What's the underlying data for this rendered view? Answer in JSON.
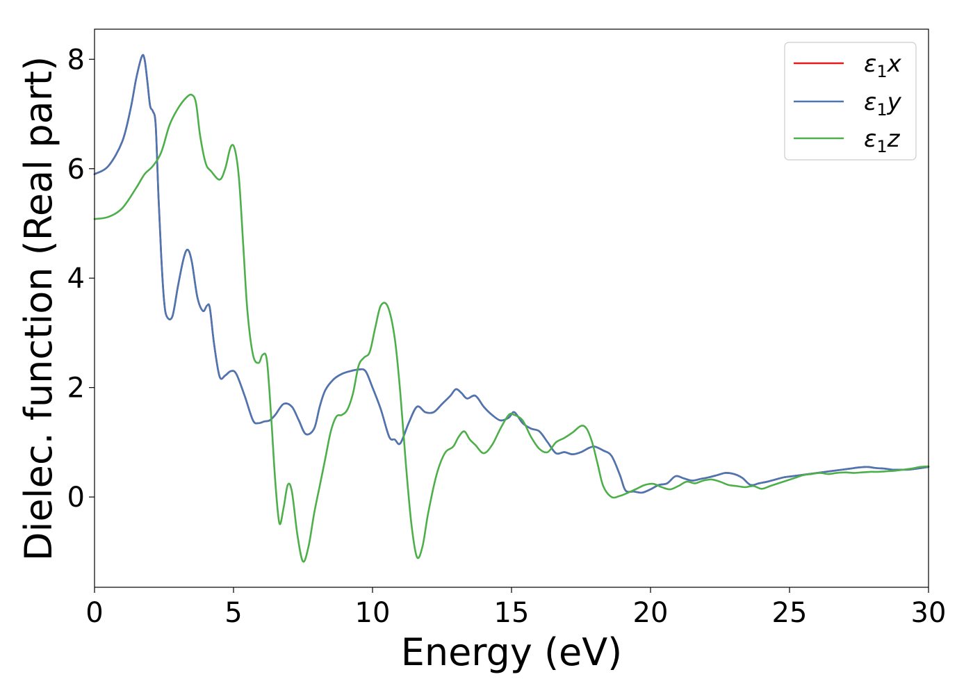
{
  "chart_data": {
    "type": "line",
    "title": "",
    "xlabel": "Energy (eV)",
    "ylabel": "Dielec. function (Real part)",
    "xlim": [
      0,
      30
    ],
    "ylim": [
      -1.65,
      8.55
    ],
    "xticks": [
      0,
      5,
      10,
      15,
      20,
      25,
      30
    ],
    "xtick_labels": [
      "0",
      "5",
      "10",
      "15",
      "20",
      "25",
      "30"
    ],
    "yticks": [
      0,
      2,
      4,
      6,
      8
    ],
    "ytick_labels": [
      "0",
      "2",
      "4",
      "6",
      "8"
    ],
    "grid": false,
    "legend_position": "top-right",
    "series": [
      {
        "name": "ε₁x",
        "legend_base": "ε",
        "legend_sub": "1",
        "legend_suffix": "x",
        "color": "#e41a1c",
        "x": [
          0,
          0.5,
          1.0,
          1.3,
          1.5,
          1.7,
          1.8,
          1.9,
          2.0,
          2.1,
          2.2,
          2.3,
          2.4,
          2.5,
          2.6,
          2.8,
          3.0,
          3.2,
          3.35,
          3.5,
          3.7,
          3.9,
          4.05,
          4.15,
          4.3,
          4.5,
          4.7,
          4.9,
          5.1,
          5.4,
          5.7,
          5.9,
          6.1,
          6.3,
          6.5,
          6.8,
          7.1,
          7.35,
          7.6,
          7.9,
          8.1,
          8.3,
          8.6,
          8.9,
          9.2,
          9.5,
          9.75,
          10.0,
          10.3,
          10.6,
          10.8,
          11.0,
          11.3,
          11.6,
          11.9,
          12.2,
          12.5,
          12.8,
          13.0,
          13.2,
          13.4,
          13.7,
          14.0,
          14.3,
          14.6,
          14.9,
          15.1,
          15.4,
          15.7,
          16.0,
          16.3,
          16.6,
          16.9,
          17.2,
          17.5,
          17.8,
          18.0,
          18.3,
          18.6,
          18.9,
          19.1,
          19.4,
          19.7,
          20.0,
          20.3,
          20.6,
          20.9,
          21.2,
          21.5,
          21.8,
          22.1,
          22.4,
          22.7,
          23.0,
          23.3,
          23.6,
          23.9,
          24.2,
          24.5,
          24.8,
          25.1,
          25.4,
          25.7,
          26.0,
          26.3,
          26.6,
          26.9,
          27.2,
          27.5,
          27.8,
          28.1,
          28.4,
          28.7,
          29.0,
          29.3,
          29.6,
          30.0
        ],
        "y": [
          5.9,
          6.05,
          6.5,
          7.1,
          7.65,
          8.05,
          8.0,
          7.6,
          7.15,
          7.05,
          6.8,
          5.5,
          4.4,
          3.6,
          3.3,
          3.3,
          3.85,
          4.35,
          4.52,
          4.3,
          3.65,
          3.4,
          3.5,
          3.45,
          2.8,
          2.2,
          2.22,
          2.3,
          2.25,
          1.85,
          1.4,
          1.35,
          1.38,
          1.4,
          1.5,
          1.7,
          1.65,
          1.4,
          1.15,
          1.25,
          1.65,
          1.95,
          2.15,
          2.25,
          2.3,
          2.33,
          2.3,
          2.0,
          1.6,
          1.1,
          1.05,
          0.98,
          1.35,
          1.65,
          1.55,
          1.55,
          1.7,
          1.85,
          1.97,
          1.9,
          1.8,
          1.85,
          1.65,
          1.5,
          1.4,
          1.45,
          1.55,
          1.35,
          1.25,
          1.2,
          1.0,
          0.8,
          0.82,
          0.78,
          0.82,
          0.9,
          0.92,
          0.85,
          0.75,
          0.4,
          0.12,
          0.1,
          0.08,
          0.14,
          0.22,
          0.25,
          0.38,
          0.34,
          0.3,
          0.33,
          0.36,
          0.4,
          0.44,
          0.42,
          0.35,
          0.22,
          0.25,
          0.28,
          0.32,
          0.36,
          0.38,
          0.4,
          0.42,
          0.44,
          0.46,
          0.48,
          0.5,
          0.52,
          0.54,
          0.55,
          0.53,
          0.52,
          0.5,
          0.5,
          0.5,
          0.52,
          0.55
        ]
      },
      {
        "name": "ε₁y",
        "legend_base": "ε",
        "legend_sub": "1",
        "legend_suffix": "y",
        "color": "#4a77b4",
        "x": [
          0,
          0.5,
          1.0,
          1.3,
          1.5,
          1.7,
          1.8,
          1.9,
          2.0,
          2.1,
          2.2,
          2.3,
          2.4,
          2.5,
          2.6,
          2.8,
          3.0,
          3.2,
          3.35,
          3.5,
          3.7,
          3.9,
          4.05,
          4.15,
          4.3,
          4.5,
          4.7,
          4.9,
          5.1,
          5.4,
          5.7,
          5.9,
          6.1,
          6.3,
          6.5,
          6.8,
          7.1,
          7.35,
          7.6,
          7.9,
          8.1,
          8.3,
          8.6,
          8.9,
          9.2,
          9.5,
          9.75,
          10.0,
          10.3,
          10.6,
          10.8,
          11.0,
          11.3,
          11.6,
          11.9,
          12.2,
          12.5,
          12.8,
          13.0,
          13.2,
          13.4,
          13.7,
          14.0,
          14.3,
          14.6,
          14.9,
          15.1,
          15.4,
          15.7,
          16.0,
          16.3,
          16.6,
          16.9,
          17.2,
          17.5,
          17.8,
          18.0,
          18.3,
          18.6,
          18.9,
          19.1,
          19.4,
          19.7,
          20.0,
          20.3,
          20.6,
          20.9,
          21.2,
          21.5,
          21.8,
          22.1,
          22.4,
          22.7,
          23.0,
          23.3,
          23.6,
          23.9,
          24.2,
          24.5,
          24.8,
          25.1,
          25.4,
          25.7,
          26.0,
          26.3,
          26.6,
          26.9,
          27.2,
          27.5,
          27.8,
          28.1,
          28.4,
          28.7,
          29.0,
          29.3,
          29.6,
          30.0
        ],
        "y": [
          5.9,
          6.05,
          6.5,
          7.1,
          7.65,
          8.05,
          8.0,
          7.6,
          7.15,
          7.05,
          6.8,
          5.5,
          4.4,
          3.6,
          3.3,
          3.3,
          3.85,
          4.35,
          4.52,
          4.3,
          3.65,
          3.4,
          3.5,
          3.45,
          2.8,
          2.2,
          2.22,
          2.3,
          2.25,
          1.85,
          1.4,
          1.35,
          1.38,
          1.4,
          1.5,
          1.7,
          1.65,
          1.4,
          1.15,
          1.25,
          1.65,
          1.95,
          2.15,
          2.25,
          2.3,
          2.33,
          2.3,
          2.0,
          1.6,
          1.1,
          1.05,
          0.98,
          1.35,
          1.65,
          1.55,
          1.55,
          1.7,
          1.85,
          1.97,
          1.9,
          1.8,
          1.85,
          1.65,
          1.5,
          1.4,
          1.45,
          1.55,
          1.35,
          1.25,
          1.2,
          1.0,
          0.8,
          0.82,
          0.78,
          0.82,
          0.9,
          0.92,
          0.85,
          0.75,
          0.4,
          0.12,
          0.1,
          0.08,
          0.14,
          0.22,
          0.25,
          0.38,
          0.34,
          0.3,
          0.33,
          0.36,
          0.4,
          0.44,
          0.42,
          0.35,
          0.22,
          0.25,
          0.28,
          0.32,
          0.36,
          0.38,
          0.4,
          0.42,
          0.44,
          0.46,
          0.48,
          0.5,
          0.52,
          0.54,
          0.55,
          0.53,
          0.52,
          0.5,
          0.5,
          0.5,
          0.52,
          0.55
        ]
      },
      {
        "name": "ε₁z",
        "legend_base": "ε",
        "legend_sub": "1",
        "legend_suffix": "z",
        "color": "#4daf4a",
        "x": [
          0,
          0.5,
          1.0,
          1.5,
          1.8,
          2.1,
          2.4,
          2.7,
          3.0,
          3.3,
          3.5,
          3.65,
          3.8,
          4.0,
          4.2,
          4.5,
          4.7,
          4.9,
          5.05,
          5.2,
          5.35,
          5.5,
          5.7,
          5.9,
          6.05,
          6.2,
          6.35,
          6.5,
          6.65,
          6.8,
          6.95,
          7.1,
          7.3,
          7.5,
          7.7,
          7.9,
          8.1,
          8.3,
          8.5,
          8.7,
          8.9,
          9.1,
          9.3,
          9.5,
          9.7,
          9.9,
          10.1,
          10.3,
          10.55,
          10.8,
          11.0,
          11.2,
          11.4,
          11.6,
          11.8,
          12.0,
          12.3,
          12.6,
          12.9,
          13.1,
          13.3,
          13.5,
          13.7,
          14.0,
          14.3,
          14.6,
          14.9,
          15.1,
          15.4,
          15.7,
          16.0,
          16.3,
          16.6,
          16.9,
          17.2,
          17.5,
          17.7,
          17.9,
          18.1,
          18.3,
          18.6,
          18.9,
          19.2,
          19.5,
          19.8,
          20.1,
          20.4,
          20.7,
          21.0,
          21.3,
          21.6,
          21.9,
          22.2,
          22.5,
          22.8,
          23.1,
          23.4,
          23.7,
          24.0,
          24.3,
          24.6,
          24.9,
          25.2,
          25.5,
          25.8,
          26.1,
          26.4,
          26.7,
          27.0,
          27.3,
          27.6,
          27.9,
          28.2,
          28.5,
          28.8,
          29.1,
          29.4,
          29.7,
          30.0
        ],
        "y": [
          5.08,
          5.12,
          5.28,
          5.65,
          5.9,
          6.05,
          6.3,
          6.8,
          7.1,
          7.3,
          7.35,
          7.2,
          6.6,
          6.1,
          5.95,
          5.8,
          6.0,
          6.4,
          6.35,
          5.8,
          4.6,
          3.4,
          2.6,
          2.45,
          2.6,
          2.5,
          1.5,
          0.3,
          -0.48,
          -0.2,
          0.22,
          0.1,
          -0.7,
          -1.18,
          -0.9,
          -0.3,
          0.2,
          0.7,
          1.2,
          1.47,
          1.5,
          1.6,
          1.9,
          2.4,
          2.55,
          2.65,
          3.1,
          3.5,
          3.48,
          2.9,
          1.9,
          0.6,
          -0.5,
          -1.1,
          -0.9,
          -0.3,
          0.4,
          0.8,
          0.92,
          1.1,
          1.2,
          1.05,
          0.95,
          0.8,
          0.95,
          1.25,
          1.5,
          1.5,
          1.4,
          1.1,
          0.88,
          0.82,
          1.0,
          1.08,
          1.18,
          1.3,
          1.25,
          1.0,
          0.6,
          0.2,
          0.0,
          0.02,
          0.08,
          0.15,
          0.22,
          0.24,
          0.18,
          0.14,
          0.2,
          0.28,
          0.25,
          0.3,
          0.32,
          0.28,
          0.22,
          0.2,
          0.18,
          0.2,
          0.15,
          0.2,
          0.25,
          0.3,
          0.35,
          0.4,
          0.42,
          0.44,
          0.42,
          0.44,
          0.45,
          0.44,
          0.45,
          0.46,
          0.46,
          0.47,
          0.48,
          0.5,
          0.52,
          0.55,
          0.56
        ]
      }
    ]
  }
}
